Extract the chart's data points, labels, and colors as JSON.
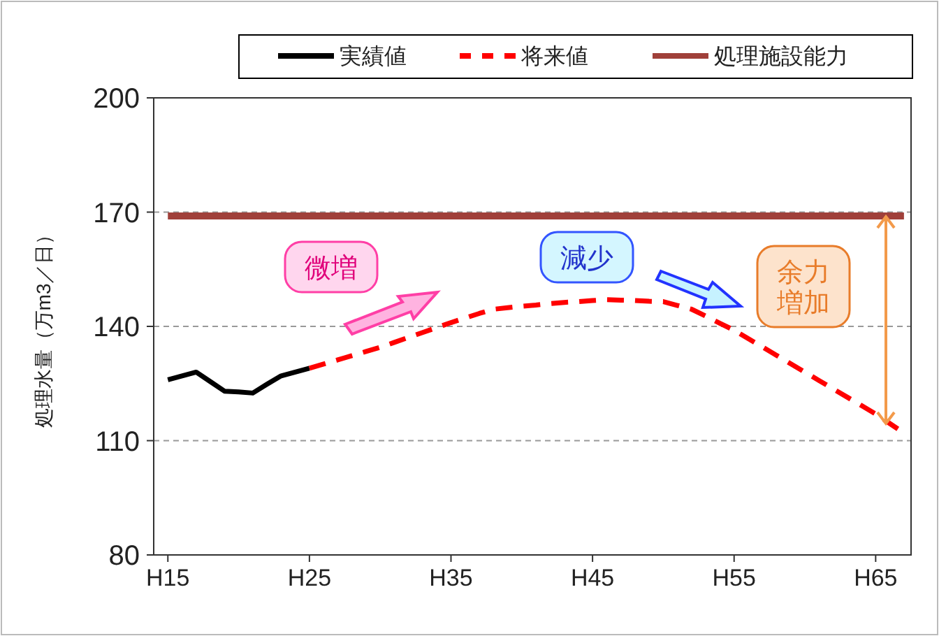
{
  "chart_data": {
    "type": "line",
    "ylabel": "処理水量（万m3／日）",
    "ylim": [
      80,
      200
    ],
    "yticks": [
      80,
      110,
      140,
      170,
      200
    ],
    "grid": "y",
    "legend": "top right",
    "categories": [
      "H15",
      null,
      null,
      null,
      null,
      null,
      null,
      null,
      null,
      null,
      "H25",
      null,
      null,
      null,
      null,
      null,
      null,
      null,
      null,
      null,
      "H35",
      null,
      null,
      null,
      null,
      null,
      null,
      null,
      null,
      null,
      "H45",
      null,
      null,
      null,
      null,
      null,
      null,
      null,
      null,
      null,
      "H55",
      null,
      null,
      null,
      null,
      null,
      null,
      null,
      null,
      null,
      "H65",
      null,
      null
    ],
    "series": [
      {
        "name": "実績値",
        "color": "#000000",
        "line_style": "solid",
        "values": [
          126,
          127,
          128,
          125.5,
          123,
          122.8,
          122.5,
          124.8,
          127,
          128,
          129,
          null,
          null,
          null,
          null,
          null,
          null,
          null,
          null,
          null,
          null,
          null,
          null,
          null,
          null,
          null,
          null,
          null,
          null,
          null,
          null,
          null,
          null,
          null,
          null,
          null,
          null,
          null,
          null,
          null,
          null,
          null,
          null,
          null,
          null,
          null,
          null,
          null,
          null,
          null,
          null,
          null,
          null
        ]
      },
      {
        "name": "将来値",
        "color": "#ff0000",
        "line_style": "dashed",
        "values": [
          null,
          null,
          null,
          null,
          null,
          null,
          null,
          null,
          null,
          null,
          129,
          130.1,
          131.2,
          132.3,
          133.4,
          134.5,
          135.8,
          137.1,
          138.4,
          139.7,
          141,
          142.2,
          143.4,
          144.5,
          144.9,
          145.3,
          145.6,
          146,
          146.3,
          146.5,
          146.8,
          147,
          146.9,
          146.8,
          146.6,
          146.5,
          145.5,
          144.5,
          142.7,
          140.8,
          139,
          136.8,
          134.6,
          132.4,
          130.2,
          128,
          125.8,
          123.6,
          121.4,
          119.2,
          117,
          114.5,
          112
        ]
      },
      {
        "name": "処理施設能力",
        "color": "#a0403a",
        "line_style": "solid",
        "values": [
          169,
          169,
          169,
          169,
          169,
          169,
          169,
          169,
          169,
          169,
          169,
          169,
          169,
          169,
          169,
          169,
          169,
          169,
          169,
          169,
          169,
          169,
          169,
          169,
          169,
          169,
          169,
          169,
          169,
          169,
          169,
          169,
          169,
          169,
          169,
          169,
          169,
          169,
          169,
          169,
          169,
          169,
          169,
          169,
          169,
          169,
          169,
          169,
          169,
          169,
          169,
          169,
          169
        ]
      }
    ],
    "annotations": [
      "微増",
      "減少",
      "余力増加"
    ]
  }
}
